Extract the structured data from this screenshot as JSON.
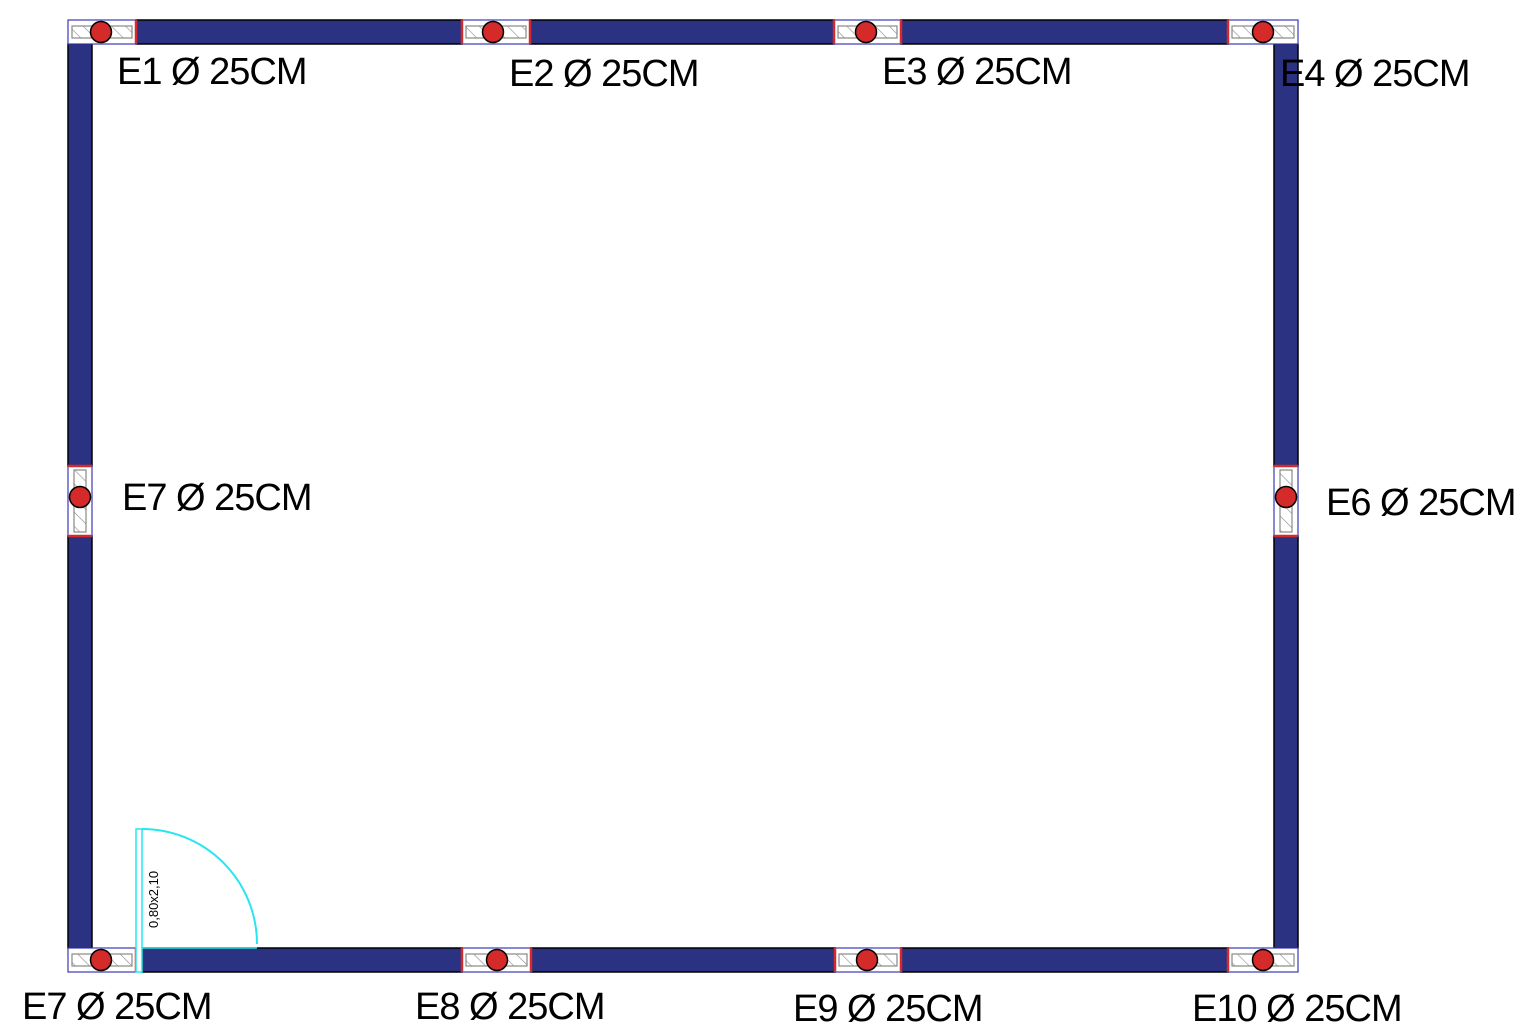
{
  "colors": {
    "wall": "#2b3282",
    "post": "#d42a2a",
    "door": "#27e6f0",
    "outline": "#000000"
  },
  "door": {
    "label": "0,80x2,10",
    "icon": "door-swing-icon"
  },
  "posts": [
    {
      "id": "E1",
      "label": "E1 Ø 25CM"
    },
    {
      "id": "E2",
      "label": "E2 Ø 25CM"
    },
    {
      "id": "E3",
      "label": "E3 Ø 25CM"
    },
    {
      "id": "E4",
      "label": "E4 Ø 25CM"
    },
    {
      "id": "E6",
      "label": "E6 Ø 25CM"
    },
    {
      "id": "E7-left",
      "label": "E7 Ø 25CM"
    },
    {
      "id": "E7-bottom",
      "label": "E7 Ø 25CM"
    },
    {
      "id": "E8",
      "label": "E8 Ø 25CM"
    },
    {
      "id": "E9",
      "label": "E9 Ø 25CM"
    },
    {
      "id": "E10",
      "label": "E10 Ø 25CM"
    }
  ]
}
